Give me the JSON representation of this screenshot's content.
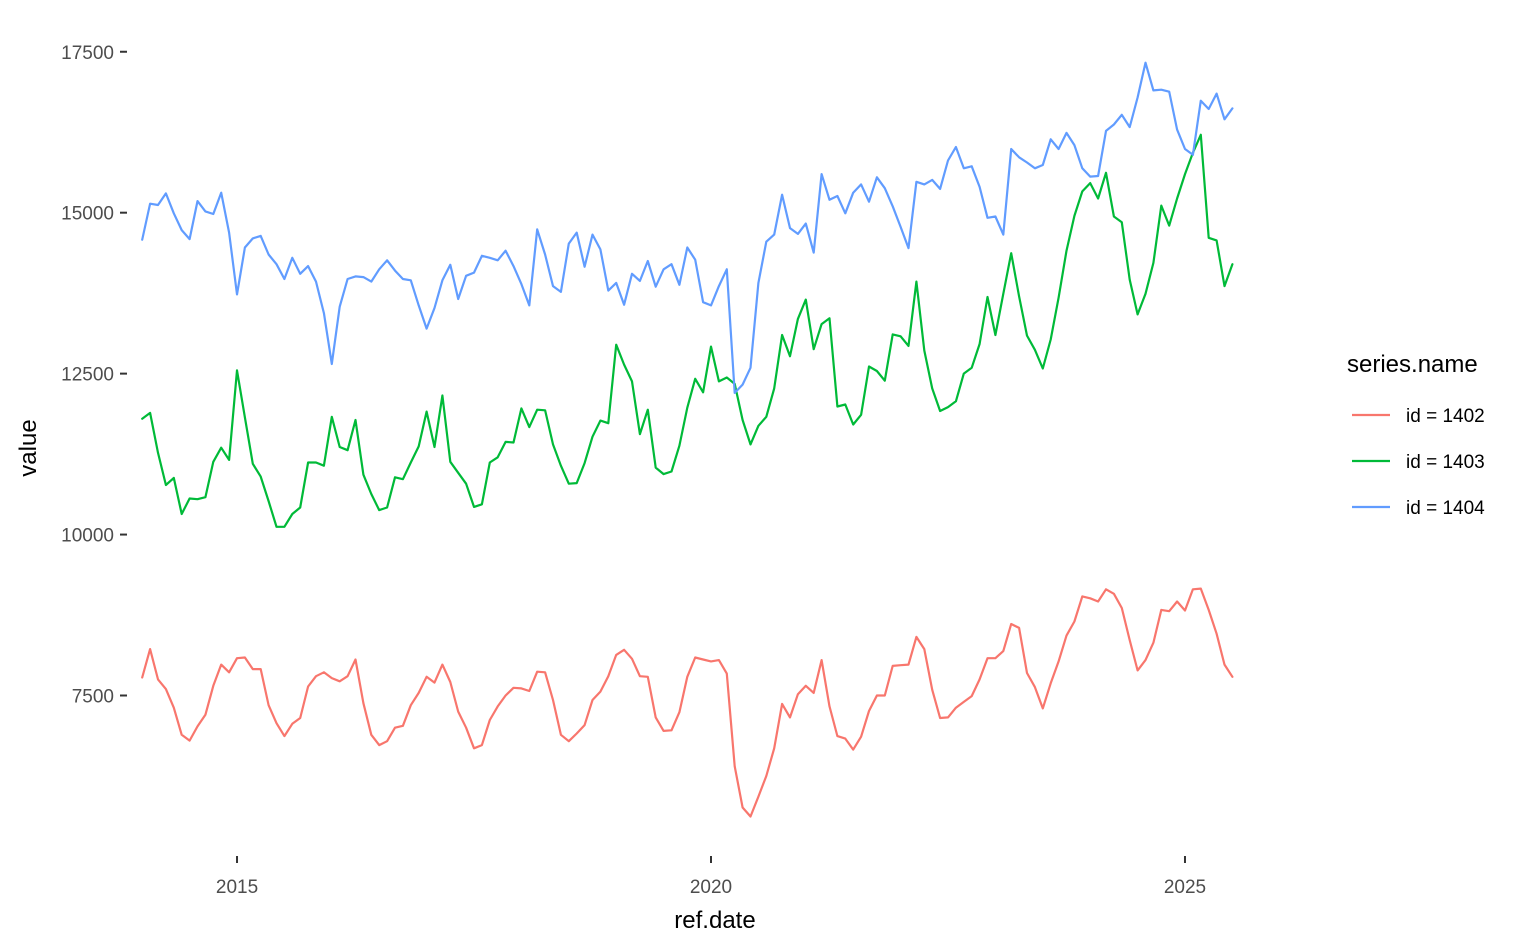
{
  "chart_data": {
    "type": "line",
    "xlabel": "ref.date",
    "ylabel": "value",
    "xlim": [
      2013.85,
      2026.15
    ],
    "ylim": [
      5100,
      17900
    ],
    "x_ticks": [
      2015,
      2020,
      2025
    ],
    "x_tick_labels": [
      "2015",
      "2020",
      "2025"
    ],
    "y_ticks": [
      7500,
      10000,
      12500,
      15000,
      17500
    ],
    "y_tick_labels": [
      "7500",
      "10000",
      "12500",
      "15000",
      "17500"
    ],
    "grid": false,
    "legend": {
      "title": "series.name",
      "position": "right"
    },
    "x_start": 2014.0,
    "x_step": 0.0833333,
    "series": [
      {
        "name": "id = 1402",
        "color": "#F8766D",
        "values": [
          7780,
          8220,
          7750,
          7600,
          7310,
          6890,
          6800,
          7020,
          7200,
          7650,
          7980,
          7860,
          8080,
          8090,
          7910,
          7910,
          7350,
          7070,
          6870,
          7060,
          7150,
          7640,
          7800,
          7860,
          7770,
          7720,
          7800,
          8060,
          7380,
          6890,
          6730,
          6790,
          7000,
          7030,
          7350,
          7540,
          7790,
          7700,
          7980,
          7710,
          7250,
          7000,
          6680,
          6730,
          7120,
          7330,
          7500,
          7620,
          7610,
          7570,
          7870,
          7860,
          7430,
          6890,
          6790,
          6910,
          7040,
          7430,
          7560,
          7800,
          8130,
          8210,
          8070,
          7800,
          7790,
          7160,
          6950,
          6960,
          7240,
          7790,
          8090,
          8060,
          8030,
          8050,
          7840,
          6400,
          5760,
          5620,
          5930,
          6250,
          6680,
          7370,
          7160,
          7520,
          7650,
          7540,
          8050,
          7330,
          6870,
          6830,
          6660,
          6860,
          7260,
          7500,
          7500,
          7960,
          7970,
          7980,
          8410,
          8220,
          7590,
          7150,
          7160,
          7310,
          7400,
          7490,
          7750,
          8080,
          8080,
          8190,
          8610,
          8550,
          7850,
          7630,
          7300,
          7690,
          8030,
          8430,
          8650,
          9040,
          9010,
          8960,
          9150,
          9080,
          8860,
          8360,
          7890,
          8050,
          8320,
          8830,
          8810,
          8960,
          8820,
          9150,
          9160,
          8830,
          8460,
          7980,
          7790
        ]
      },
      {
        "name": "id = 1403",
        "color": "#00BA38",
        "values": [
          11800,
          11890,
          11270,
          10770,
          10880,
          10320,
          10560,
          10550,
          10580,
          11130,
          11350,
          11160,
          12550,
          11820,
          11100,
          10900,
          10520,
          10120,
          10120,
          10320,
          10420,
          11120,
          11120,
          11070,
          11830,
          11360,
          11310,
          11780,
          10930,
          10630,
          10380,
          10420,
          10890,
          10860,
          11120,
          11370,
          11910,
          11360,
          12160,
          11130,
          10960,
          10790,
          10430,
          10470,
          11120,
          11200,
          11440,
          11430,
          11960,
          11670,
          11940,
          11930,
          11400,
          11070,
          10790,
          10800,
          11110,
          11520,
          11770,
          11730,
          12950,
          12640,
          12380,
          11560,
          11940,
          11040,
          10940,
          10980,
          11380,
          11970,
          12420,
          12210,
          12920,
          12380,
          12440,
          12340,
          11780,
          11400,
          11690,
          11830,
          12270,
          13100,
          12770,
          13350,
          13650,
          12880,
          13270,
          13360,
          11990,
          12020,
          11710,
          11860,
          12610,
          12540,
          12390,
          13110,
          13080,
          12930,
          13930,
          12860,
          12270,
          11920,
          11980,
          12070,
          12500,
          12590,
          12960,
          13690,
          13100,
          13740,
          14370,
          13700,
          13090,
          12870,
          12580,
          13030,
          13680,
          14410,
          14950,
          15330,
          15460,
          15220,
          15620,
          14940,
          14850,
          13960,
          13420,
          13740,
          14220,
          15110,
          14800,
          15220,
          15600,
          15930,
          16210,
          14610,
          14570,
          13860,
          14200
        ]
      },
      {
        "name": "id = 1404",
        "color": "#619CFF",
        "values": [
          14580,
          15140,
          15120,
          15300,
          14990,
          14730,
          14590,
          15180,
          15020,
          14980,
          15310,
          14690,
          13730,
          14460,
          14600,
          14640,
          14350,
          14200,
          13970,
          14300,
          14050,
          14170,
          13930,
          13440,
          12650,
          13540,
          13970,
          14010,
          14000,
          13930,
          14120,
          14260,
          14100,
          13970,
          13950,
          13560,
          13200,
          13520,
          13950,
          14190,
          13660,
          14020,
          14070,
          14330,
          14300,
          14260,
          14410,
          14170,
          13890,
          13560,
          14740,
          14350,
          13860,
          13770,
          14520,
          14690,
          14160,
          14660,
          14430,
          13790,
          13910,
          13570,
          14050,
          13940,
          14250,
          13850,
          14120,
          14200,
          13880,
          14460,
          14270,
          13610,
          13560,
          13860,
          14120,
          12200,
          12330,
          12590,
          13910,
          14550,
          14660,
          15280,
          14760,
          14670,
          14830,
          14380,
          15600,
          15200,
          15260,
          14990,
          15310,
          15440,
          15170,
          15550,
          15380,
          15100,
          14780,
          14450,
          15480,
          15440,
          15510,
          15370,
          15810,
          16020,
          15690,
          15720,
          15400,
          14920,
          14940,
          14660,
          15990,
          15860,
          15780,
          15690,
          15740,
          16140,
          15990,
          16240,
          16050,
          15690,
          15560,
          15570,
          16270,
          16370,
          16520,
          16330,
          16790,
          17330,
          16900,
          16910,
          16880,
          16290,
          15990,
          15900,
          16740,
          16610,
          16850,
          16450,
          16620
        ]
      }
    ]
  }
}
